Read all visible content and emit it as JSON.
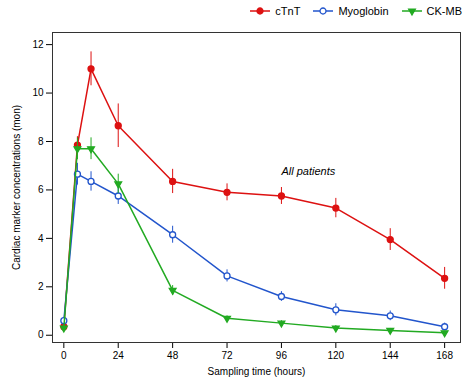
{
  "chart_data": {
    "type": "line",
    "xlabel": "Sampling time (hours)",
    "ylabel": "Cardiac marker concentrations (mon)",
    "x": [
      0,
      6,
      12,
      24,
      48,
      72,
      96,
      120,
      144,
      168
    ],
    "series": [
      {
        "name": "cTnT",
        "color": "#dd1111",
        "marker": "circle",
        "values": [
          0.35,
          7.85,
          11.0,
          8.65,
          6.35,
          5.9,
          5.75,
          5.25,
          3.95,
          2.35
        ],
        "yerr": [
          0.1,
          0.35,
          0.7,
          0.9,
          0.5,
          0.35,
          0.35,
          0.4,
          0.45,
          0.45
        ]
      },
      {
        "name": "Myoglobin",
        "color": "#2255cc",
        "marker": "circle-open",
        "values": [
          0.6,
          6.65,
          6.35,
          5.75,
          4.15,
          2.45,
          1.6,
          1.05,
          0.8,
          0.35
        ],
        "yerr": [
          0.1,
          0.45,
          0.4,
          0.35,
          0.35,
          0.25,
          0.2,
          0.25,
          0.2,
          0.15
        ]
      },
      {
        "name": "CK-MB",
        "color": "#22aa22",
        "marker": "triangle-down",
        "values": [
          0.3,
          7.7,
          7.7,
          6.25,
          1.85,
          0.7,
          0.5,
          0.3,
          0.2,
          0.1
        ],
        "yerr": [
          0.1,
          0.45,
          0.45,
          0.4,
          0.2,
          0.1,
          0.1,
          0.1,
          0.08,
          0.06
        ]
      }
    ],
    "xlim": [
      -5,
      175
    ],
    "ylim": [
      -0.3,
      12.5
    ],
    "xticks": [
      0,
      24,
      48,
      72,
      96,
      120,
      144,
      168
    ],
    "yticks": [
      0,
      2,
      4,
      6,
      8,
      10,
      12
    ],
    "annotations": [
      {
        "text": "All patients",
        "x": 96,
        "y": 6.6
      }
    ],
    "legend": "upper right"
  }
}
